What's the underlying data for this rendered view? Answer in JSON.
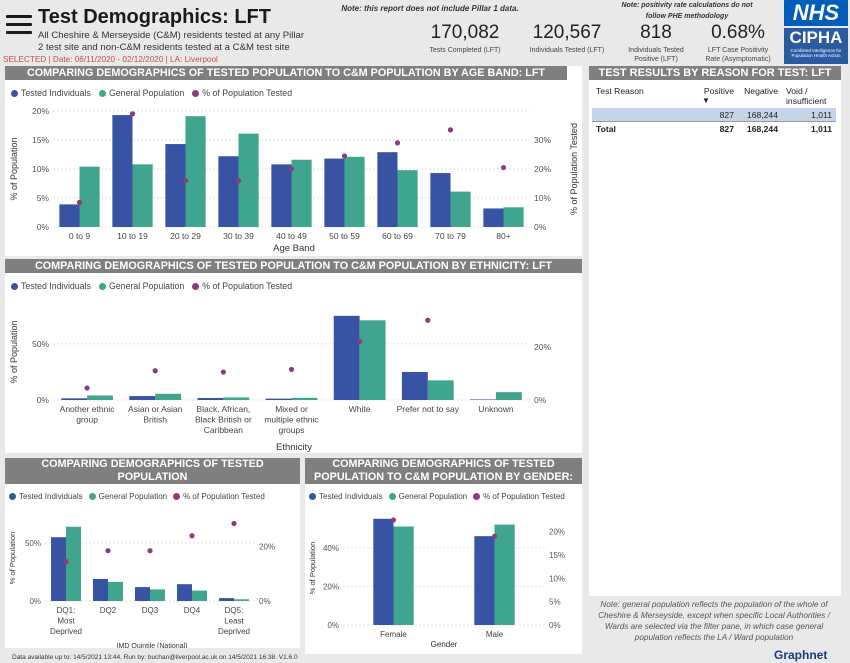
{
  "header": {
    "title": "Test Demographics: LFT",
    "subtitle_line1": "All Cheshire & Merseyside (C&M) residents tested at any Pillar",
    "subtitle_line2": "2 test site and non-C&M residents tested at a C&M test site",
    "selection": "SELECTED | Date: 06/11/2020 - 02/12/2020 | LA: Liverpool",
    "note_pillar": "Note: this report does not include Pillar 1 data.",
    "note_positivity": "Note: positivity rate calculations do not follow PHE methodology",
    "logo_nhs": "NHS",
    "logo_cipha": "CIPHA",
    "logo_cipha_sub": "Combined Intelligence for Population Health Action"
  },
  "kpis": [
    {
      "value": "170,082",
      "label1": "Tests Completed (LFT)",
      "label2": ""
    },
    {
      "value": "120,567",
      "label1": "Individuals Tested (LFT)",
      "label2": ""
    },
    {
      "value": "818",
      "label1": "Individuals Tested",
      "label2": "Positive (LFT)"
    },
    {
      "value": "0.68%",
      "label1": "LFT Case Positivity",
      "label2": "Rate (Asymptomatic)"
    }
  ],
  "colors": {
    "tested": "#3953a4",
    "general": "#3fa58e",
    "pct": "#8e3a7e",
    "header_bg": "#7f7f7f"
  },
  "legend": {
    "tested": "Tested Individuals",
    "general": "General Population",
    "pct": "% of Population Tested"
  },
  "panels": {
    "age": {
      "title": "COMPARING DEMOGRAPHICS OF TESTED POPULATION TO C&M POPULATION BY AGE BAND: LFT",
      "xlabel": "Age Band",
      "ylabel_left": "% of Population",
      "ylabel_right": "% of Population Tested"
    },
    "ethnicity": {
      "title": "COMPARING DEMOGRAPHICS OF TESTED POPULATION TO C&M POPULATION BY ETHNICITY: LFT",
      "xlabel": "Ethnicity",
      "ylabel_left": "% of Population"
    },
    "imd": {
      "title_line1": "COMPARING DEMOGRAPHICS OF TESTED POPULATION",
      "title_line2": "TO C&M POPULATION BY IMD QUINTILE: LFT",
      "xlabel": "IMD Quintile (National)",
      "ylabel_left": "% of Population"
    },
    "gender": {
      "title_line1": "COMPARING DEMOGRAPHICS OF TESTED",
      "title_line2": "POPULATION TO C&M POPULATION BY GENDER: LFT",
      "xlabel": "Gender",
      "ylabel_left": "% of Population"
    }
  },
  "test_reason": {
    "title": "TEST RESULTS BY REASON FOR TEST: LFT",
    "headers": [
      "Test Reason",
      "Positive",
      "Negative",
      "Void / insufficient"
    ],
    "rows": [
      [
        "",
        "827",
        "168,244",
        "1,011"
      ]
    ],
    "total": [
      "Total",
      "827",
      "168,244",
      "1,011"
    ],
    "sort_indicator": "▼"
  },
  "general_note": "Note: general population reflects the population of the whole of Cheshire & Merseyside, except when specific Local Authorities / Wards are selected via the filter pane, in which case general population reflects the LA / Ward population",
  "footer": {
    "text": "Data available up to: 14/5/2021 13:44. Run by: buchan@liverpool.ac.uk on 14/5/2021 16:38. V1.6.0",
    "brand": "Graphnet"
  },
  "chart_data": [
    {
      "type": "bar",
      "title": "COMPARING DEMOGRAPHICS OF TESTED POPULATION TO C&M POPULATION BY AGE BAND: LFT",
      "xlabel": "Age Band",
      "ylabel": "% of Population",
      "ylabel_right": "% of Population Tested",
      "categories": [
        "0 to 9",
        "10 to 19",
        "20 to 29",
        "30 to 39",
        "40 to 49",
        "50 to 59",
        "60 to 69",
        "70 to 79",
        "80+"
      ],
      "ylim": [
        0,
        20
      ],
      "yticks": [
        "0%",
        "5%",
        "10%",
        "15%",
        "20%"
      ],
      "ylim_right": [
        0,
        40
      ],
      "yticks_right": [
        "0%",
        "10%",
        "20%",
        "30%"
      ],
      "series": [
        {
          "name": "Tested Individuals",
          "values": [
            3.9,
            19.3,
            14.3,
            12.2,
            10.8,
            11.8,
            12.9,
            9.3,
            3.2
          ]
        },
        {
          "name": "General Population",
          "values": [
            10.4,
            10.8,
            19.1,
            16.1,
            11.6,
            12.1,
            9.8,
            6.1,
            3.4
          ]
        },
        {
          "name": "% of Population Tested",
          "axis": "right",
          "values": [
            8.5,
            39.0,
            16.0,
            16.0,
            20.0,
            24.5,
            29.0,
            33.5,
            20.5
          ]
        }
      ],
      "legend": "top-left",
      "grid": true
    },
    {
      "type": "bar",
      "title": "COMPARING DEMOGRAPHICS OF TESTED POPULATION TO C&M POPULATION BY ETHNICITY: LFT",
      "xlabel": "Ethnicity",
      "ylabel": "% of Population",
      "categories": [
        "Another ethnic group",
        "Asian or Asian British",
        "Black, African, Black British or Caribbean",
        "Mixed or multiple ethnic groups",
        "White",
        "Prefer not to say",
        "Unknown"
      ],
      "ylim": [
        0,
        90
      ],
      "yticks": [
        "0%",
        "50%"
      ],
      "ylim_right": [
        0,
        38
      ],
      "yticks_right": [
        "0%",
        "20%"
      ],
      "series": [
        {
          "name": "Tested Individuals",
          "values": [
            1.5,
            3.5,
            1.8,
            1.2,
            75,
            25,
            0.5
          ]
        },
        {
          "name": "General Population",
          "values": [
            4.0,
            5.5,
            2.3,
            1.9,
            71,
            17.5,
            7.0
          ]
        },
        {
          "name": "% of Population Tested",
          "axis": "right",
          "values": [
            4.5,
            11.0,
            10.5,
            11.5,
            22.0,
            30.0,
            0
          ]
        }
      ],
      "legend": "top-left",
      "grid": true
    },
    {
      "type": "bar",
      "title": "COMPARING DEMOGRAPHICS OF TESTED POPULATION TO C&M POPULATION BY IMD QUINTILE: LFT",
      "xlabel": "IMD Quintile (National)",
      "ylabel": "% of Population",
      "categories": [
        "DQ1: Most Deprived",
        "DQ2",
        "DQ3",
        "DQ4",
        "DQ5: Least Deprived"
      ],
      "ylim": [
        0,
        75
      ],
      "yticks": [
        "0%",
        "50%"
      ],
      "ylim_right": [
        0,
        32
      ],
      "yticks_right": [
        "0%",
        "20%"
      ],
      "series": [
        {
          "name": "Tested Individuals",
          "values": [
            55,
            19,
            12,
            14.5,
            2.5
          ]
        },
        {
          "name": "General Population",
          "values": [
            64,
            16.5,
            10,
            9,
            1.5
          ]
        },
        {
          "name": "% of Population Tested",
          "axis": "right",
          "values": [
            14.5,
            18.5,
            18.5,
            24,
            28.5
          ]
        }
      ],
      "legend": "top-left",
      "grid": true
    },
    {
      "type": "bar",
      "title": "COMPARING DEMOGRAPHICS OF TESTED POPULATION TO C&M POPULATION BY GENDER: LFT",
      "xlabel": "Gender",
      "ylabel": "% of Population",
      "categories": [
        "Female",
        "Male"
      ],
      "ylim": [
        0,
        58
      ],
      "yticks": [
        "0%",
        "20%",
        "40%"
      ],
      "ylim_right": [
        0,
        24
      ],
      "yticks_right": [
        "0%",
        "5%",
        "10%",
        "15%",
        "20%"
      ],
      "series": [
        {
          "name": "Tested Individuals",
          "values": [
            55,
            46
          ]
        },
        {
          "name": "General Population",
          "values": [
            51,
            52
          ]
        },
        {
          "name": "% of Population Tested",
          "axis": "right",
          "values": [
            22.5,
            19
          ]
        }
      ],
      "legend": "top-left",
      "grid": true
    }
  ]
}
